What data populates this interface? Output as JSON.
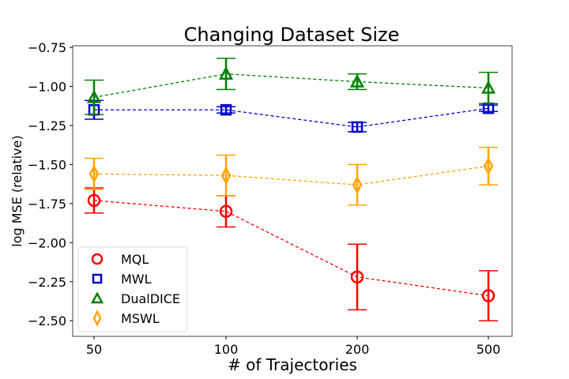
{
  "chart_data": {
    "type": "line",
    "title": "Changing Dataset Size",
    "xlabel": "# of Trajectories",
    "ylabel": "log MSE (relative)",
    "categories": [
      "50",
      "100",
      "200",
      "500"
    ],
    "ylim": [
      -2.6,
      -0.74
    ],
    "yticks": [
      -0.75,
      -1.0,
      -1.25,
      -1.5,
      -1.75,
      -2.0,
      -2.25,
      -2.5
    ],
    "ytick_labels": [
      "−0.75",
      "−1.00",
      "−1.25",
      "−1.50",
      "−1.75",
      "−2.00",
      "−2.25",
      "−2.50"
    ],
    "grid": false,
    "legend_position": "lower-left",
    "series": [
      {
        "name": "MQL",
        "color": "#ff0000",
        "marker": "circle",
        "values": [
          -1.73,
          -1.8,
          -2.22,
          -2.34
        ],
        "errors": [
          0.08,
          0.1,
          0.21,
          0.16
        ]
      },
      {
        "name": "MWL",
        "color": "#0000cc",
        "marker": "square",
        "values": [
          -1.15,
          -1.15,
          -1.26,
          -1.14
        ],
        "errors": [
          0.06,
          0.02,
          0.03,
          0.02
        ]
      },
      {
        "name": "DualDICE",
        "color": "#008000",
        "marker": "triangle",
        "values": [
          -1.07,
          -0.92,
          -0.97,
          -1.01
        ],
        "errors": [
          0.11,
          0.1,
          0.05,
          0.1
        ]
      },
      {
        "name": "MSWL",
        "color": "#ffa500",
        "marker": "diamond",
        "values": [
          -1.56,
          -1.57,
          -1.63,
          -1.51
        ],
        "errors": [
          0.1,
          0.13,
          0.13,
          0.12
        ]
      }
    ]
  }
}
